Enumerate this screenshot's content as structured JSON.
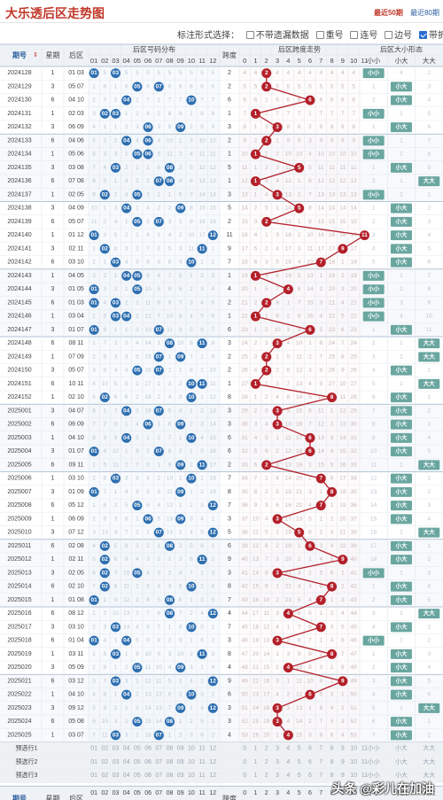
{
  "page_title": "大乐透后区走势图",
  "tabs": [
    "最近50期",
    "最近80期"
  ],
  "options": {
    "label": "标注形式选择：",
    "items": [
      {
        "label": "不带遗漏数据",
        "checked": false
      },
      {
        "label": "重号",
        "checked": false
      },
      {
        "label": "连号",
        "checked": false
      },
      {
        "label": "边号",
        "checked": false
      },
      {
        "label": "带折线",
        "checked": true
      }
    ]
  },
  "headers": {
    "issue": "期号",
    "weekday": "星期",
    "back_zone": "后区",
    "dist": "后区号码分布",
    "span": "跨度",
    "span_trend": "后区跨度走势",
    "size": "后区大小形态",
    "numbers": [
      "01",
      "02",
      "03",
      "04",
      "05",
      "06",
      "07",
      "08",
      "09",
      "10",
      "11",
      "12"
    ],
    "span_numbers": [
      "0",
      "1",
      "2",
      "3",
      "4",
      "5",
      "6",
      "7",
      "8",
      "9",
      "10",
      "11"
    ],
    "size_cols": [
      "小小",
      "小大",
      "大大"
    ],
    "bottom_dist": "后区号码分析",
    "bottom_size": "后区大小形态"
  },
  "predict": [
    "预选行1",
    "预选行2",
    "预选行3"
  ],
  "colors": {
    "ball": "#2e6fb0",
    "span_ball": "#b3202a",
    "size_tag": "#6aa6a0",
    "line": "#b3202a"
  },
  "chart_data": {
    "type": "table",
    "rows": [
      {
        "issue": "2024128",
        "week": "1",
        "a": 1,
        "b": 3
      },
      {
        "issue": "2024129",
        "week": "3",
        "a": 5,
        "b": 7
      },
      {
        "issue": "2024130",
        "week": "6",
        "a": 4,
        "b": 10
      },
      {
        "issue": "2024131",
        "week": "1",
        "a": 2,
        "b": 3
      },
      {
        "issue": "2024132",
        "week": "3",
        "a": 6,
        "b": 9
      },
      {
        "issue": "2024133",
        "week": "6",
        "a": 4,
        "b": 6
      },
      {
        "issue": "2024134",
        "week": "1",
        "a": 5,
        "b": 6
      },
      {
        "issue": "2024135",
        "week": "3",
        "a": 3,
        "b": 8
      },
      {
        "issue": "2024136",
        "week": "6",
        "a": 7,
        "b": 8
      },
      {
        "issue": "2024137",
        "week": "1",
        "a": 2,
        "b": 5
      },
      {
        "issue": "2024138",
        "week": "3",
        "a": 4,
        "b": 9
      },
      {
        "issue": "2024139",
        "week": "6",
        "a": 5,
        "b": 7
      },
      {
        "issue": "2024140",
        "week": "1",
        "a": 1,
        "b": 12
      },
      {
        "issue": "2024141",
        "week": "3",
        "a": 2,
        "b": 11
      },
      {
        "issue": "2024142",
        "week": "6",
        "a": 3,
        "b": 10
      },
      {
        "issue": "2024143",
        "week": "1",
        "a": 4,
        "b": 5
      },
      {
        "issue": "2024144",
        "week": "3",
        "a": 1,
        "b": 5
      },
      {
        "issue": "2024145",
        "week": "6",
        "a": 1,
        "b": 3
      },
      {
        "issue": "2024146",
        "week": "1",
        "a": 3,
        "b": 4
      },
      {
        "issue": "2024147",
        "week": "3",
        "a": 1,
        "b": 7
      },
      {
        "issue": "2024148",
        "week": "6",
        "a": 8,
        "b": 11
      },
      {
        "issue": "2024149",
        "week": "1",
        "a": 7,
        "b": 9
      },
      {
        "issue": "2024150",
        "week": "3",
        "a": 5,
        "b": 7
      },
      {
        "issue": "2024151",
        "week": "6",
        "a": 10,
        "b": 11
      },
      {
        "issue": "2024152",
        "week": "1",
        "a": 2,
        "b": 10
      },
      {
        "issue": "2025001",
        "week": "3",
        "a": 4,
        "b": 7
      },
      {
        "issue": "2025002",
        "week": "6",
        "a": 6,
        "b": 9
      },
      {
        "issue": "2025003",
        "week": "1",
        "a": 4,
        "b": 10
      },
      {
        "issue": "2025004",
        "week": "3",
        "a": 1,
        "b": 7
      },
      {
        "issue": "2025005",
        "week": "6",
        "a": 9,
        "b": 11
      },
      {
        "issue": "2025006",
        "week": "1",
        "a": 3,
        "b": 10
      },
      {
        "issue": "2025007",
        "week": "3",
        "a": 1,
        "b": 9
      },
      {
        "issue": "2025008",
        "week": "6",
        "a": 5,
        "b": 12
      },
      {
        "issue": "2025009",
        "week": "1",
        "a": 6,
        "b": 9
      },
      {
        "issue": "2025010",
        "week": "3",
        "a": 7,
        "b": 12
      },
      {
        "issue": "2025011",
        "week": "6",
        "a": 2,
        "b": 8
      },
      {
        "issue": "2025012",
        "week": "1",
        "a": 2,
        "b": 11
      },
      {
        "issue": "2025013",
        "week": "3",
        "a": 2,
        "b": 5
      },
      {
        "issue": "2025014",
        "week": "6",
        "a": 2,
        "b": 10
      },
      {
        "issue": "2025015",
        "week": "1",
        "a": 1,
        "b": 8
      },
      {
        "issue": "2025016",
        "week": "6",
        "a": 8,
        "b": 12
      },
      {
        "issue": "2025017",
        "week": "3",
        "a": 3,
        "b": 10
      },
      {
        "issue": "2025018",
        "week": "6",
        "a": 1,
        "b": 4
      },
      {
        "issue": "2025019",
        "week": "1",
        "a": 3,
        "b": 11
      },
      {
        "issue": "2025020",
        "week": "3",
        "a": 5,
        "b": 9
      },
      {
        "issue": "2025021",
        "week": "6",
        "a": 3,
        "b": 12
      },
      {
        "issue": "2025022",
        "week": "1",
        "a": 4,
        "b": 10
      },
      {
        "issue": "2025023",
        "week": "3",
        "a": 9,
        "b": 12
      },
      {
        "issue": "2025024",
        "week": "6",
        "a": 5,
        "b": 8
      },
      {
        "issue": "2025025",
        "week": "1",
        "a": 3,
        "b": 7
      }
    ]
  },
  "watermark": "头条 @彩儿在加油"
}
